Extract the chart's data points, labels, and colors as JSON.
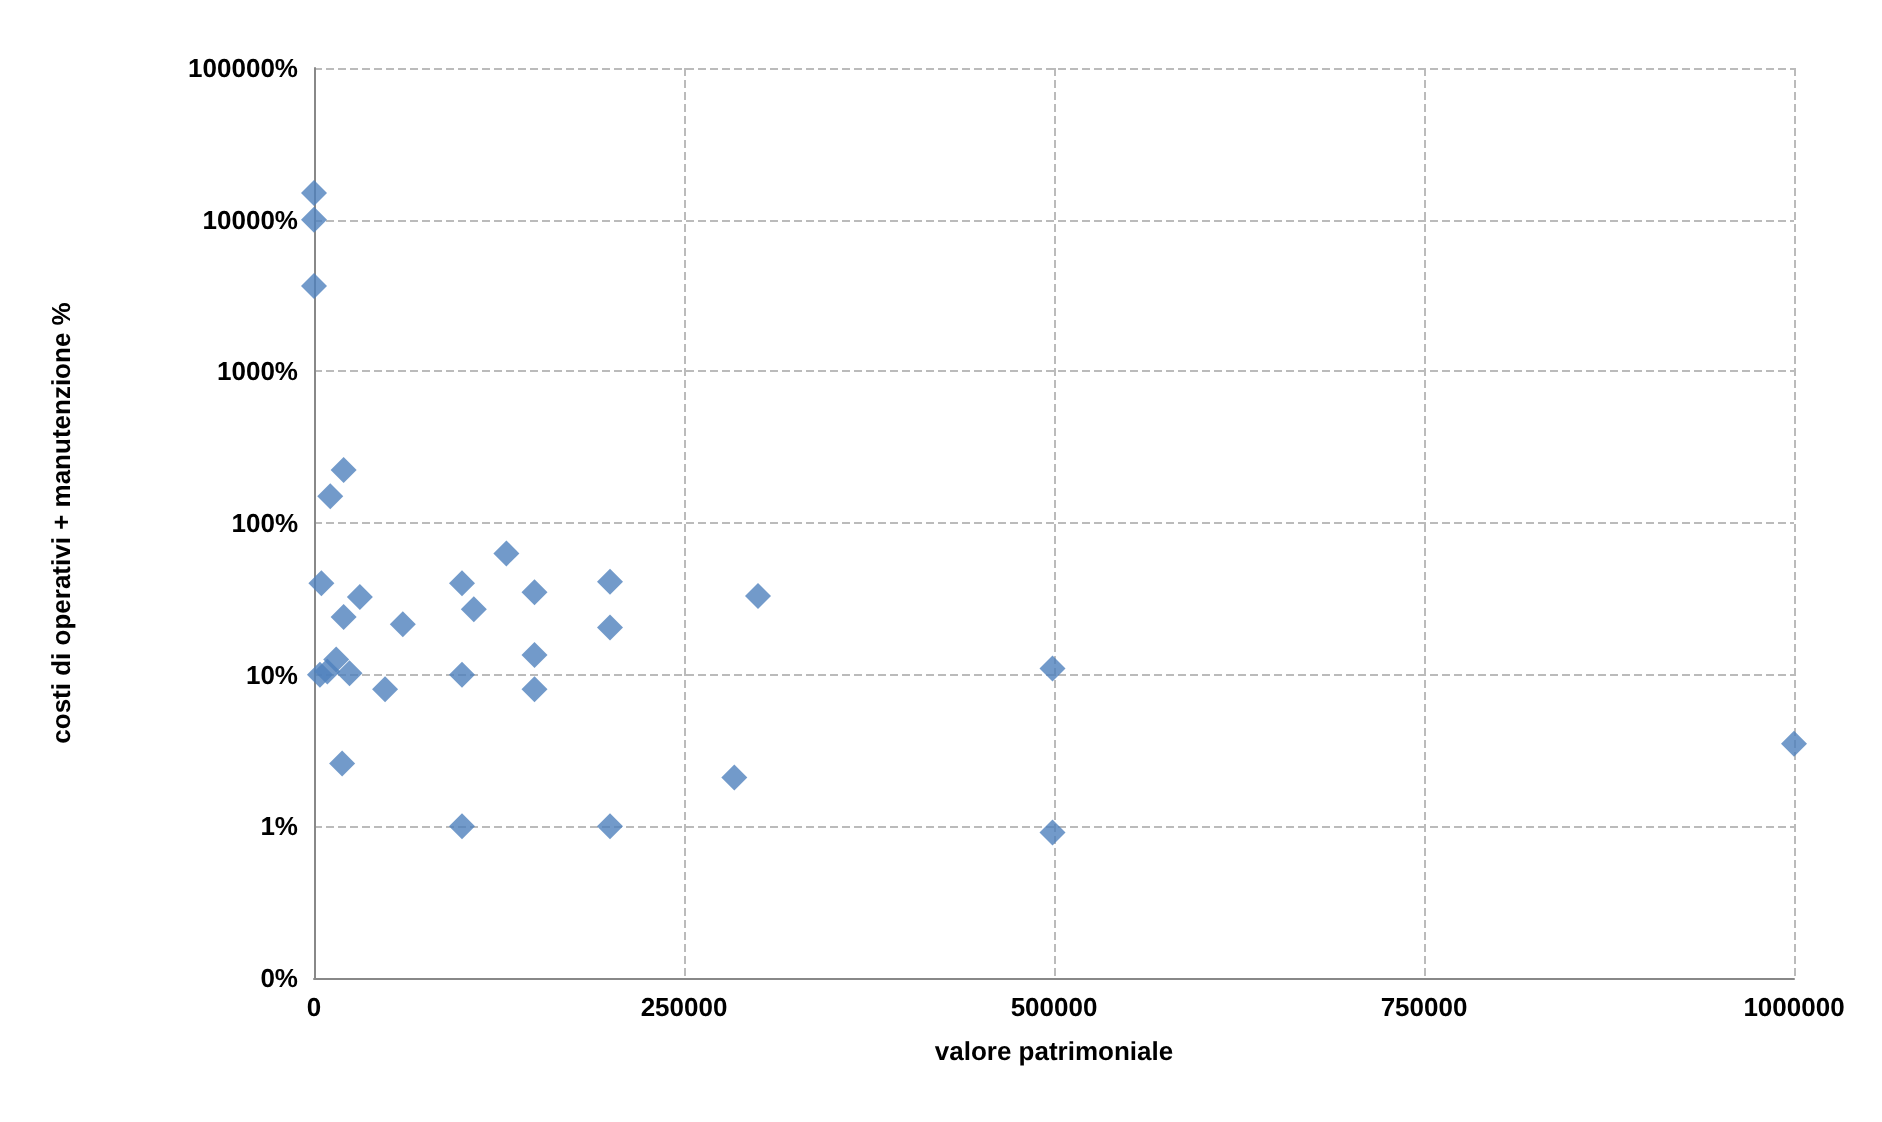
{
  "chart_data": {
    "type": "scatter",
    "xlabel": "valore patrimoniale",
    "ylabel": "costi di operativi + manutenzione %",
    "log": "y",
    "grid": true,
    "marker": "diamond",
    "xlim": [
      0,
      1000000
    ],
    "xticks": [
      0,
      250000,
      500000,
      750000,
      1000000
    ],
    "ylim": [
      0.1,
      100000
    ],
    "yticks": [
      {
        "value": 0.1,
        "label": "0%"
      },
      {
        "value": 1,
        "label": "1%"
      },
      {
        "value": 10,
        "label": "10%"
      },
      {
        "value": 100,
        "label": "100%"
      },
      {
        "value": 1000,
        "label": "1000%"
      },
      {
        "value": 10000,
        "label": "10000%"
      },
      {
        "value": 100000,
        "label": "100000%"
      }
    ],
    "series": [
      {
        "color": "#4f81bd",
        "x": [
          0,
          0,
          0,
          20000,
          11000,
          5000,
          4000,
          9000,
          15000,
          20000,
          31000,
          24000,
          60000,
          48000,
          19000,
          100000,
          108000,
          130000,
          100000,
          100000,
          149000,
          149000,
          149000,
          200000,
          200000,
          200000,
          300000,
          284000,
          499000,
          499000,
          1000000
        ],
        "values": [
          15000,
          10000,
          3650,
          224,
          150,
          40,
          10,
          10.5,
          12.6,
          24,
          32.5,
          10.2,
          21.5,
          8,
          2.6,
          40,
          27,
          63,
          10,
          1,
          35,
          13.5,
          8,
          41,
          20.5,
          1,
          33,
          2.1,
          11,
          0.91,
          3.5
        ]
      }
    ]
  }
}
